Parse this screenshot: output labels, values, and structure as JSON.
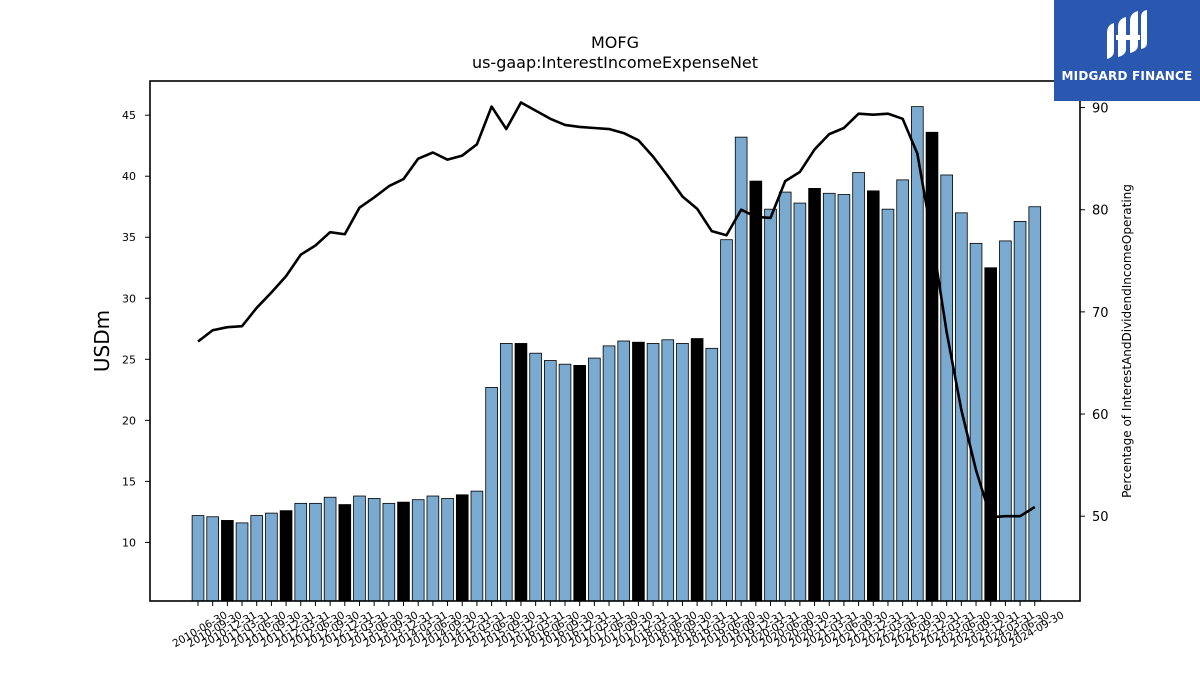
{
  "logo": {
    "text": "MIDGARD FINANCE",
    "background": "#2a57b0"
  },
  "colors": {
    "bar": "#7aaad0",
    "bar_highlight": "#000000",
    "line": "#000000"
  },
  "chart_data": {
    "type": "bar",
    "title": "MOFG",
    "subtitle": "us-gaap:InterestIncomeExpenseNet",
    "ylabel": "USDm",
    "y2label": "Percentage of InterestAndDividendIncomeOperating",
    "ylim": [
      5.2,
      47.8
    ],
    "y2lim": [
      41.7,
      92.6
    ],
    "yticks": [
      10,
      15,
      20,
      25,
      30,
      35,
      40,
      45
    ],
    "y2ticks": [
      50,
      60,
      70,
      80,
      90
    ],
    "categories": [
      "2010-06-30",
      "2010-09-30",
      "2010-12-31",
      "2011-03-31",
      "2011-06-30",
      "2011-09-30",
      "2011-12-31",
      "2012-03-31",
      "2012-06-30",
      "2012-09-30",
      "2012-12-31",
      "2013-03-31",
      "2013-06-30",
      "2013-09-30",
      "2013-12-31",
      "2014-03-31",
      "2014-06-30",
      "2014-09-30",
      "2014-12-31",
      "2015-03-31",
      "2015-06-30",
      "2015-09-30",
      "2015-12-31",
      "2016-03-31",
      "2016-06-30",
      "2016-09-30",
      "2016-12-31",
      "2017-03-31",
      "2017-06-30",
      "2017-09-30",
      "2017-12-31",
      "2018-03-31",
      "2018-06-30",
      "2018-09-30",
      "2018-12-31",
      "2019-03-31",
      "2019-06-30",
      "2019-09-30",
      "2019-12-31",
      "2020-03-31",
      "2020-06-30",
      "2020-09-30",
      "2020-12-31",
      "2021-03-31",
      "2021-06-30",
      "2021-09-30",
      "2021-12-31",
      "2022-03-31",
      "2022-06-30",
      "2022-09-30",
      "2022-12-31",
      "2023-03-31",
      "2023-06-30",
      "2023-09-30",
      "2023-12-31",
      "2024-03-31",
      "2024-06-30",
      "2024-09-30"
    ],
    "series": [
      {
        "type": "bar",
        "values": [
          12.2,
          12.1,
          11.8,
          11.6,
          12.2,
          12.4,
          12.6,
          13.2,
          13.2,
          13.7,
          13.1,
          13.8,
          13.6,
          13.2,
          13.3,
          13.5,
          13.8,
          13.6,
          13.9,
          14.2,
          22.7,
          26.3,
          26.3,
          25.5,
          24.9,
          24.6,
          24.5,
          25.1,
          26.1,
          26.5,
          26.4,
          26.3,
          26.6,
          26.3,
          26.7,
          25.9,
          34.8,
          43.2,
          39.6,
          37.3,
          38.7,
          37.8,
          39.0,
          38.6,
          38.5,
          40.3,
          38.8,
          37.3,
          39.7,
          45.7,
          43.6,
          40.1,
          37.0,
          34.5,
          32.5,
          34.7,
          36.3,
          37.5
        ],
        "highlighted": [
          false,
          false,
          true,
          false,
          false,
          false,
          true,
          false,
          false,
          false,
          true,
          false,
          false,
          false,
          true,
          false,
          false,
          false,
          true,
          false,
          false,
          false,
          true,
          false,
          false,
          false,
          true,
          false,
          false,
          false,
          true,
          false,
          false,
          false,
          true,
          false,
          false,
          false,
          true,
          false,
          false,
          false,
          true,
          false,
          false,
          false,
          true,
          false,
          false,
          false,
          true,
          false,
          false,
          false,
          true,
          false,
          false,
          false
        ]
      },
      {
        "type": "line",
        "axis": "right",
        "values": [
          67.1,
          68.2,
          68.5,
          68.6,
          70.4,
          71.9,
          73.5,
          75.6,
          76.5,
          77.8,
          77.6,
          80.2,
          81.2,
          82.3,
          83.0,
          85.0,
          85.6,
          84.9,
          85.3,
          86.4,
          90.1,
          87.9,
          90.5,
          89.7,
          88.9,
          88.3,
          88.1,
          88.0,
          87.9,
          87.5,
          86.8,
          85.2,
          83.3,
          81.3,
          80.1,
          77.9,
          77.5,
          80.0,
          79.3,
          79.2,
          82.8,
          83.7,
          85.9,
          87.4,
          88.0,
          89.4,
          89.3,
          89.4,
          88.9,
          85.5,
          77.3,
          68.0,
          60.4,
          54.5,
          49.9,
          50.0,
          50.0,
          50.9
        ]
      }
    ]
  }
}
